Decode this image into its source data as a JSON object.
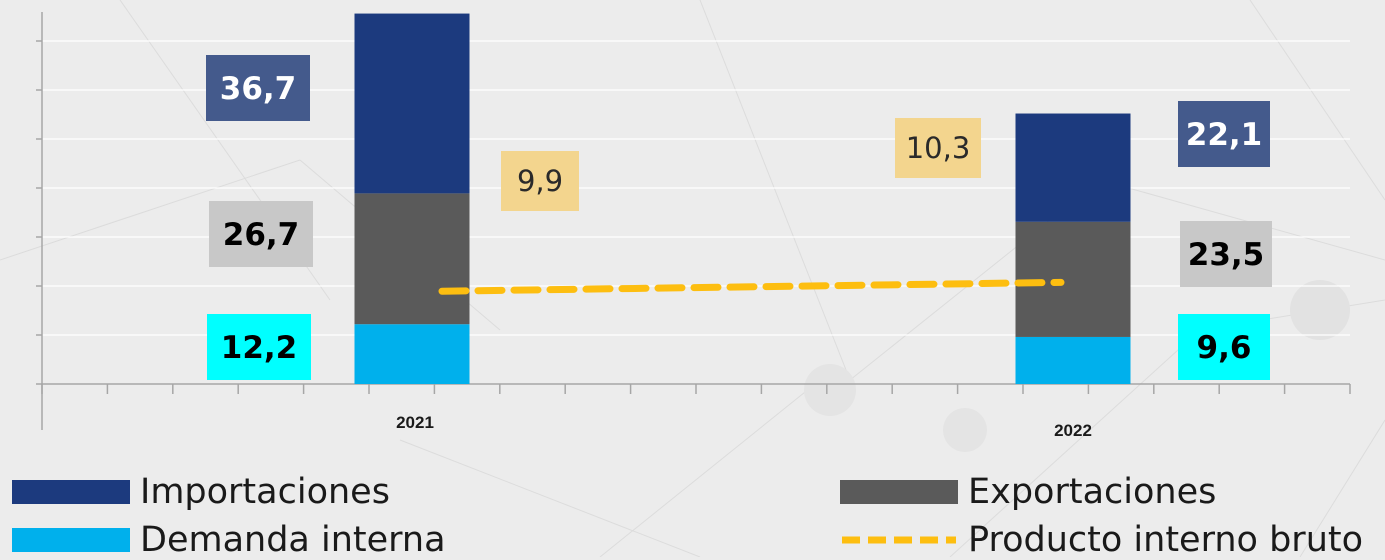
{
  "chart_data": {
    "type": "bar",
    "stacked": true,
    "categories": [
      "2021",
      "2022"
    ],
    "series": [
      {
        "name": "Demanda interna",
        "values": [
          12.2,
          9.6
        ],
        "labels": [
          "12,2",
          "9,6"
        ],
        "color": "#00b0ec",
        "label_bg": "#00ffff"
      },
      {
        "name": "Exportaciones",
        "values": [
          26.7,
          23.5
        ],
        "labels": [
          "26,7",
          "23,5"
        ],
        "color": "#5a5a5a",
        "label_bg": "#c8c8c8"
      },
      {
        "name": "Importaciones",
        "values": [
          36.7,
          22.1
        ],
        "labels": [
          "36,7",
          "22,1"
        ],
        "color": "#1c3a7e",
        "label_bg": "#445a8c"
      }
    ],
    "line_series": {
      "name": "Producto interno bruto",
      "values": [
        9.9,
        10.3
      ],
      "labels": [
        "9,9",
        "10,3"
      ],
      "color": "#fdbe10",
      "label_bg": "#f3d58e",
      "style": "dashed"
    },
    "grid": true
  }
}
